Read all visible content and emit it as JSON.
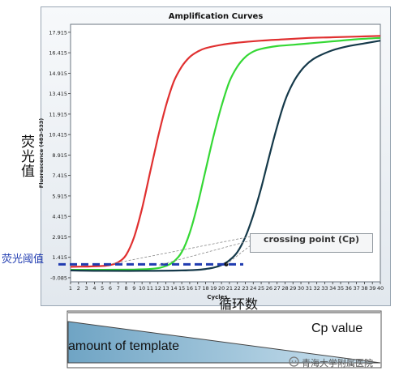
{
  "chart_data": {
    "type": "line",
    "title": "Amplification Curves",
    "xlabel": "Cycles",
    "ylabel": "Fluorescence (483-533)",
    "xlim": [
      1,
      40
    ],
    "ylim": [
      -0.385,
      18.5
    ],
    "x_ticks": [
      1,
      2,
      3,
      4,
      5,
      6,
      7,
      8,
      9,
      10,
      11,
      12,
      13,
      14,
      15,
      16,
      17,
      18,
      19,
      20,
      21,
      22,
      23,
      24,
      25,
      26,
      27,
      28,
      29,
      30,
      31,
      32,
      33,
      34,
      35,
      36,
      37,
      38,
      39,
      40
    ],
    "y_ticks": [
      "-0.085",
      "1.415",
      "2.915",
      "4.415",
      "5.915",
      "7.415",
      "8.915",
      "10.415",
      "11.915",
      "13.415",
      "14.915",
      "16.415",
      "17.915"
    ],
    "threshold": 0.9,
    "series": [
      {
        "color": "#e03030",
        "x": [
          1,
          3,
          5,
          6,
          7,
          8,
          9,
          10,
          11,
          12,
          13,
          14,
          15,
          16,
          17,
          18,
          20,
          22,
          25,
          28,
          31,
          34,
          37,
          40
        ],
        "y": [
          0.72,
          0.74,
          0.78,
          0.85,
          1.05,
          1.6,
          2.9,
          5.0,
          7.6,
          10.2,
          12.5,
          14.3,
          15.4,
          16.1,
          16.5,
          16.75,
          17.0,
          17.15,
          17.3,
          17.4,
          17.5,
          17.55,
          17.6,
          17.65
        ]
      },
      {
        "color": "#35d835",
        "x": [
          1,
          5,
          9,
          11,
          12,
          13,
          14,
          15,
          16,
          17,
          18,
          19,
          20,
          21,
          22,
          23,
          24,
          25,
          27,
          29,
          31,
          34,
          37,
          40
        ],
        "y": [
          0.5,
          0.5,
          0.52,
          0.56,
          0.62,
          0.78,
          1.1,
          1.8,
          3.2,
          5.3,
          7.8,
          10.3,
          12.5,
          14.3,
          15.4,
          16.1,
          16.5,
          16.7,
          16.9,
          17.0,
          17.1,
          17.25,
          17.4,
          17.5
        ]
      },
      {
        "color": "#15394a",
        "x": [
          1,
          5,
          10,
          15,
          17,
          18,
          19,
          20,
          21,
          22,
          23,
          24,
          25,
          26,
          27,
          28,
          29,
          30,
          31,
          32,
          34,
          36,
          38,
          40
        ],
        "y": [
          0.45,
          0.42,
          0.42,
          0.45,
          0.5,
          0.56,
          0.66,
          0.85,
          1.2,
          1.8,
          2.9,
          4.5,
          6.5,
          8.8,
          11.0,
          12.9,
          14.2,
          15.1,
          15.7,
          16.1,
          16.6,
          16.9,
          17.1,
          17.3
        ]
      }
    ]
  },
  "annotations": {
    "y_axis_cn": "荧光值",
    "x_axis_cn": "循环数",
    "threshold_cn": "荧光阈值",
    "crossing_point": "crossing point (Cp)",
    "template_label": "amount of template",
    "cp_value_label": "Cp value",
    "watermark": "青海大学附属医院"
  },
  "colors": {
    "threshold_line": "#1f3bb0",
    "wedge_fill": "#9cc7de"
  }
}
